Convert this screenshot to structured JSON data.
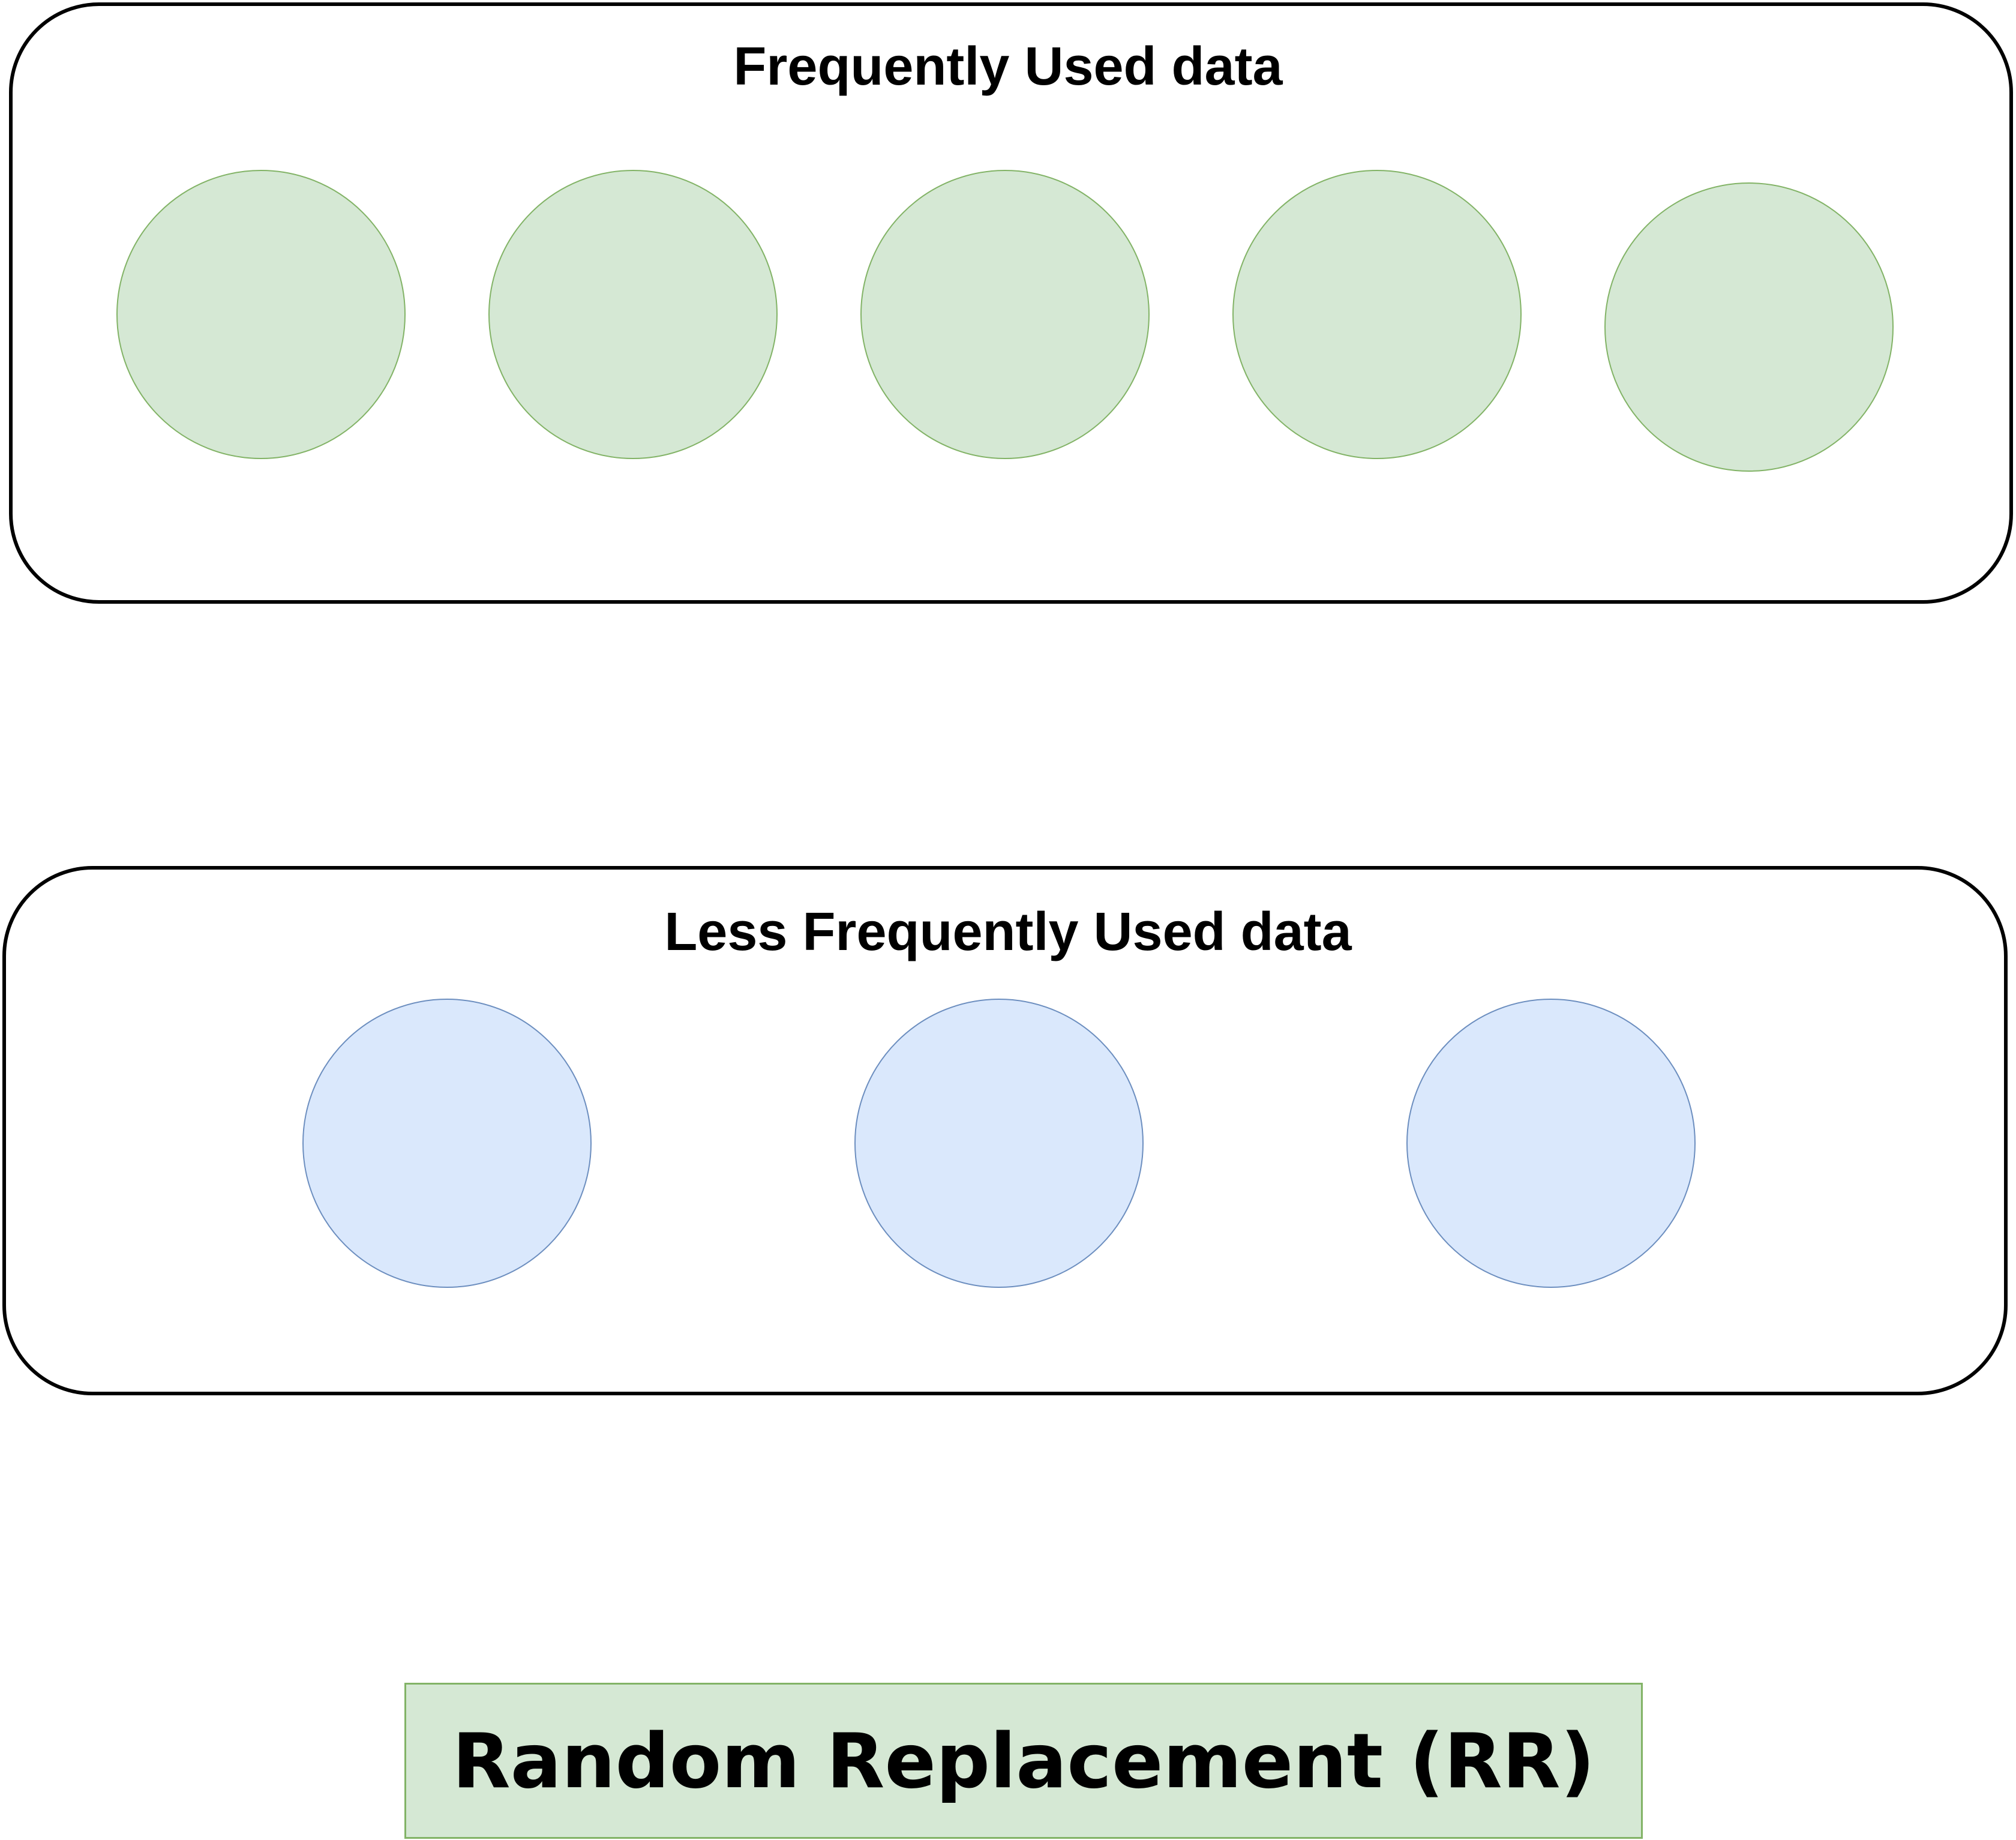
{
  "colors": {
    "frequent_fill": "#d5e8d4",
    "frequent_stroke": "#82b366",
    "less_fill": "#dae8fc",
    "less_stroke": "#6c8ebf",
    "container_border": "#000000"
  },
  "frequent_group": {
    "title": "Frequently Used data",
    "item_count": 5
  },
  "less_frequent_group": {
    "title": "Less Frequently Used data",
    "item_count": 3
  },
  "caption": {
    "label": "Random Replacement (RR)"
  }
}
